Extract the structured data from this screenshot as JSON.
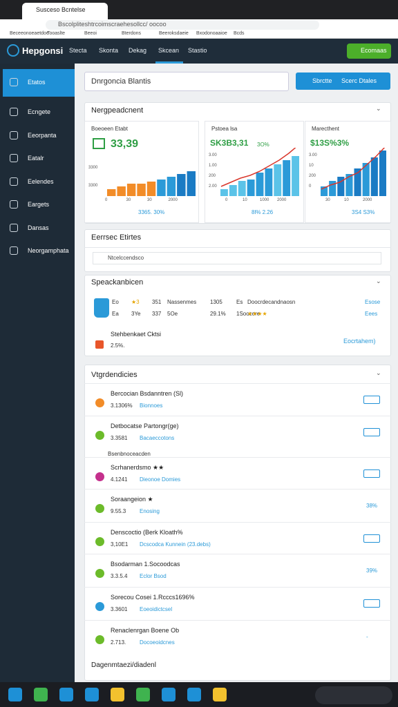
{
  "browser": {
    "tab_title": "Susceso Bcntelse",
    "url": "Bscolpliteshtrcoimscraehesollcc/ oocoo",
    "bookmarks": [
      "Beceeonoeaetdoe",
      "Tooaslte",
      "Beeoi",
      "Bterdons",
      "Beeroksdaeie",
      "Bxodonoaaioe",
      "Bcds"
    ]
  },
  "app": {
    "logo": "Hepgonsi",
    "nav": [
      "Stecta",
      "Skonta",
      "Dekag",
      "Skcean",
      "Stastio"
    ],
    "active_nav": 3,
    "action": "Ecomaas"
  },
  "sidebar": {
    "items": [
      "Etatos",
      "Ecngete",
      "Eeorpanta",
      "Eatalr",
      "Eelendes",
      "Eargets",
      "Dansas",
      "Neorgamphata"
    ],
    "active": 0
  },
  "search": {
    "placeholder": "Dnrgoncia Blantis",
    "buttons": [
      "Sbrctte",
      "Scerc Dtales"
    ]
  },
  "overview": {
    "title": "Nergpeadcnent",
    "panels": [
      {
        "label": "Boeoeen Etabt",
        "value": "33,39",
        "ylabels": [
          "3300",
          "3300"
        ],
        "xlabels": [
          "0",
          "30",
          "30",
          "2000"
        ],
        "bars": [
          10,
          14,
          18,
          18,
          21,
          24,
          28,
          32,
          36
        ],
        "colors": [
          "#f28c28",
          "#f28c28",
          "#f28c28",
          "#f28c28",
          "#f28c28",
          "#2b9ad8",
          "#2b9ad8",
          "#1a7bc4",
          "#1a7bc4"
        ],
        "foot": "3365. 30%"
      },
      {
        "label": "Pstoea lsa",
        "value": "SK3B3,31",
        "note": "3O%",
        "ylabels": [
          "3.00",
          "1.00",
          "200",
          "2.00"
        ],
        "xlabels": [
          "0",
          "10",
          "1000",
          "2000"
        ],
        "bars": [
          10,
          16,
          22,
          24,
          34,
          40,
          46,
          52,
          58
        ],
        "colors": [
          "#5bc3e8",
          "#5bc3e8",
          "#5bc3e8",
          "#2b9ad8",
          "#2b9ad8",
          "#2b9ad8",
          "#5bc3e8",
          "#2b9ad8",
          "#5bc3e8"
        ],
        "line": [
          14,
          20,
          26,
          30,
          36,
          44,
          52,
          62,
          74
        ],
        "foot": "8l% 2.26"
      },
      {
        "label": "Marecthent",
        "value": "$13S%3%",
        "ylabels": [
          "3.00",
          "10",
          "200",
          "0"
        ],
        "xlabels": [
          "30",
          "10",
          "2000"
        ],
        "bars": [
          14,
          22,
          28,
          32,
          40,
          48,
          56,
          66
        ],
        "colors": [
          "#2b9ad8",
          "#2b9ad8",
          "#1a7bc4",
          "#2b9ad8",
          "#1a7bc4",
          "#2b9ad8",
          "#1a7bc4",
          "#1a7bc4"
        ],
        "line": [
          10,
          16,
          20,
          28,
          34,
          46,
          58,
          72
        ],
        "foot": "3S4 S3%"
      }
    ]
  },
  "filters": {
    "title": "Eerrsec Etirtes",
    "input": "Ntcelccendsco"
  },
  "spotlight": {
    "title": "Speackanbicen",
    "rows": [
      [
        "Eo",
        "★3",
        "351",
        "Nassenmes",
        "1305",
        "Es",
        "Doocrdecandnaosn",
        "Esose"
      ],
      [
        "Ea",
        "3Ye",
        "337",
        "5Oe",
        "29.1%",
        "1Soocore",
        "★★★★",
        "Eees"
      ]
    ],
    "item": {
      "name": "Stehbenkaet Cktsi",
      "sub": "2.5%.",
      "link": "Eocrtahem)"
    }
  },
  "list": {
    "title": "Vtgrdendicies",
    "section": "Bsenbnoceacden",
    "footer": "Dagenmtaezi/diadenl",
    "items": [
      {
        "name": "Bercocian Bsdanntren (Sl)",
        "num": "3.1306%",
        "sub": "Bionnoes",
        "icon": "#f28c28",
        "right": null
      },
      {
        "name": "Detbocatse Partongr(ge)",
        "num": "3.3581",
        "sub": "Bacaeccotons",
        "icon": "#6cbb2a",
        "right": null
      },
      {
        "name": "Scrhanerdsmo ★★",
        "num": "4.1241",
        "sub": "Dieonoe Domies",
        "icon": "#c4308c",
        "right": null
      },
      {
        "name": "Soraangeion ★",
        "num": "9.55.3",
        "sub": "Enosing",
        "icon": "#6cbb2a",
        "right": "38%"
      },
      {
        "name": "Denscoctio (Berk Kloath%",
        "num": "3,10E1",
        "sub": "Dcscodca Kunnein (23.debs)",
        "icon": "#6cbb2a",
        "right": null
      },
      {
        "name": "Bsodarman  1.Socoodcas",
        "num": "3.3.5.4",
        "sub": "Eclor Bsod",
        "icon": "#6cbb2a",
        "right": "39%"
      },
      {
        "name": "Sorecou Cosei  1.Rcccs1696%",
        "num": "3.3601",
        "sub": "Eoeoidictcsel",
        "icon": "#2b9ad8",
        "right": null
      },
      {
        "name": "Renaclenrgan Boene Ob",
        "num": "2.713.",
        "sub": "Docoeoidcnes",
        "icon": "#6cbb2a",
        "right": "-"
      }
    ]
  }
}
